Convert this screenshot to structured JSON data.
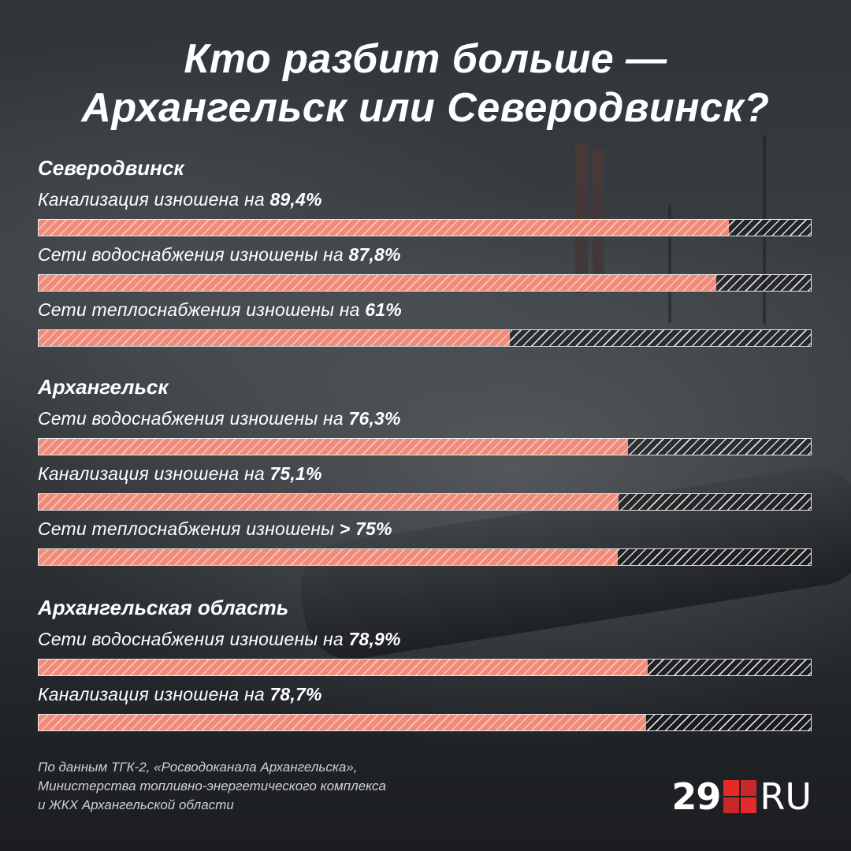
{
  "title_lines": [
    "Кто разбит больше —",
    "Архангельск или Северодвинск?"
  ],
  "chart_data": {
    "type": "bar",
    "title": "Кто разбит больше — Архангельск или Северодвинск?",
    "xlim": [
      0,
      100
    ],
    "groups": [
      {
        "name": "Северодвинск",
        "items": [
          {
            "label": "Канализация изношена на",
            "value_text": "89,4%",
            "value": 89.4
          },
          {
            "label": "Сети водоснабжения изношены на",
            "value_text": "87,8%",
            "value": 87.8
          },
          {
            "label": "Сети теплоснабжения изношены на",
            "value_text": "61%",
            "value": 61
          }
        ]
      },
      {
        "name": "Архангельск",
        "items": [
          {
            "label": "Сети водоснабжения изношены на",
            "value_text": "76,3%",
            "value": 76.3
          },
          {
            "label": "Канализация изношена на",
            "value_text": "75,1%",
            "value": 75.1
          },
          {
            "label": "Сети теплоснабжения изношены",
            "value_text": "> 75%",
            "value": 75
          }
        ]
      },
      {
        "name": "Архангельская область",
        "items": [
          {
            "label": "Сети водоснабжения изношены на",
            "value_text": "78,9%",
            "value": 78.9
          },
          {
            "label": "Канализация изношена на",
            "value_text": "78,7%",
            "value": 78.7
          }
        ]
      }
    ]
  },
  "source_lines": [
    "По данным ТГК-2, «Росводоканала Архангельска»,",
    "Министерства топливно-энергетического комплекса",
    "и ЖКХ Архангельской области"
  ],
  "logo": {
    "number": "29",
    "suffix": "RU"
  },
  "colors": {
    "bar_fill": "#f08a79",
    "logo_red": "#e52a2a"
  }
}
